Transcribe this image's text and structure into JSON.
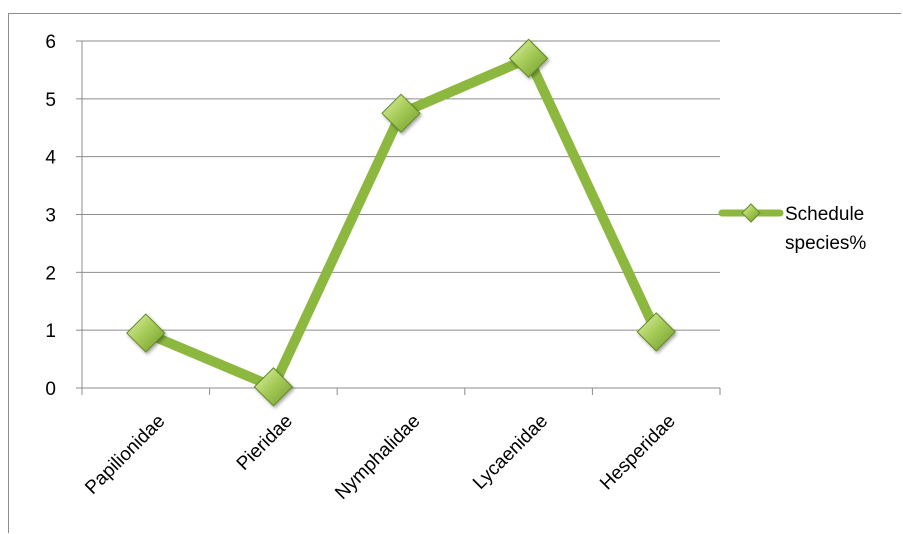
{
  "chart_data": {
    "type": "line",
    "categories": [
      "Papilionidae",
      "Pieridae",
      "Nymphalidae",
      "Lycaenidae",
      "Hesperidae"
    ],
    "series": [
      {
        "name": "Schedule species%",
        "values": [
          0.95,
          0.02,
          4.75,
          5.7,
          0.97
        ],
        "color": "#8db83f",
        "marker": "diamond"
      }
    ],
    "ylim": [
      0,
      6
    ],
    "yticks": [
      "0",
      "1",
      "2",
      "3",
      "4",
      "5",
      "6"
    ],
    "grid": "horizontal",
    "legend": {
      "placement": "right",
      "lines": [
        "Schedule",
        "species%"
      ]
    },
    "title": "",
    "xlabel": "",
    "ylabel": ""
  }
}
